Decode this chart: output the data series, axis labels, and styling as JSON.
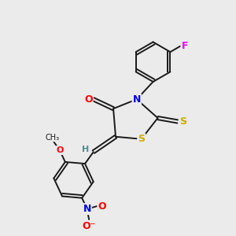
{
  "background_color": "#ebebeb",
  "bond_color": "#1a1a1a",
  "atom_colors": {
    "O": "#ff0000",
    "N": "#0000ee",
    "S": "#ccaa00",
    "F": "#ee00ee",
    "H": "#4a9090",
    "C": "#1a1a1a"
  },
  "figsize": [
    3.0,
    3.0
  ],
  "dpi": 100
}
